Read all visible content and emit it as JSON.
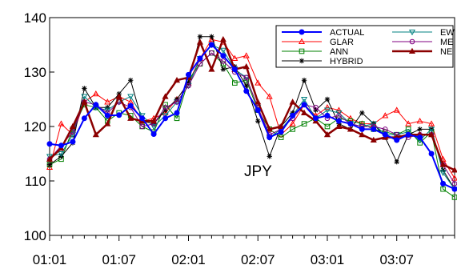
{
  "chart_data": {
    "type": "line",
    "annotation": "JPY",
    "ylim": [
      100,
      140
    ],
    "yticks": [
      100,
      110,
      120,
      130,
      140
    ],
    "xticks": [
      "01:01",
      "01:07",
      "02:01",
      "02:07",
      "03:01",
      "03:07"
    ],
    "grid": false,
    "legend_position": "top-right",
    "x": [
      "01:01",
      "01:02",
      "01:03",
      "01:04",
      "01:05",
      "01:06",
      "01:07",
      "01:08",
      "01:09",
      "01:10",
      "01:11",
      "01:12",
      "02:01",
      "02:02",
      "02:03",
      "02:04",
      "02:05",
      "02:06",
      "02:07",
      "02:08",
      "02:09",
      "02:10",
      "02:11",
      "02:12",
      "03:01",
      "03:02",
      "03:03",
      "03:04",
      "03:05",
      "03:06",
      "03:07",
      "03:08",
      "03:09",
      "03:10",
      "03:11",
      "03:12"
    ],
    "series": [
      {
        "name": "ACTUAL",
        "color": "#0000ff",
        "marker": "dot",
        "width": 2,
        "values": [
          116.8,
          116.5,
          117.2,
          121.5,
          124.0,
          122.0,
          122.1,
          123.8,
          121.5,
          118.6,
          121.5,
          122.5,
          129.5,
          132.5,
          135.0,
          133.0,
          130.5,
          126.5,
          123.0,
          118.0,
          119.0,
          122.0,
          124.0,
          121.5,
          122.0,
          121.0,
          120.5,
          119.5,
          119.5,
          118.5,
          117.5,
          118.5,
          118.0,
          115.0,
          109.5,
          108.5
        ]
      },
      {
        "name": "GLAR",
        "color": "#ff0000",
        "marker": "triangle",
        "width": 1,
        "values": [
          112.5,
          120.5,
          118.5,
          124.5,
          126.0,
          124.5,
          125.5,
          124.5,
          121.0,
          121.5,
          122.5,
          125.0,
          128.0,
          132.5,
          136.0,
          135.5,
          132.5,
          133.0,
          128.0,
          125.5,
          118.5,
          120.5,
          124.0,
          122.0,
          123.5,
          123.0,
          121.5,
          120.5,
          120.5,
          122.0,
          123.0,
          120.5,
          121.0,
          120.5,
          114.0,
          110.5
        ]
      },
      {
        "name": "ANN",
        "color": "#008000",
        "marker": "square",
        "width": 1,
        "values": [
          113.0,
          114.0,
          119.5,
          124.0,
          123.5,
          121.0,
          122.5,
          122.0,
          120.0,
          119.0,
          124.0,
          121.5,
          128.5,
          131.5,
          133.5,
          131.5,
          128.0,
          128.5,
          123.0,
          119.5,
          118.0,
          119.5,
          120.5,
          121.5,
          120.0,
          121.5,
          121.0,
          120.5,
          119.5,
          119.0,
          118.5,
          119.5,
          117.0,
          119.0,
          108.5,
          107.0
        ]
      },
      {
        "name": "HYBRID",
        "color": "#000000",
        "marker": "star",
        "width": 1,
        "values": [
          113.0,
          114.5,
          117.0,
          127.0,
          123.5,
          123.5,
          126.0,
          128.5,
          121.0,
          120.5,
          123.0,
          125.0,
          128.0,
          136.5,
          136.5,
          130.5,
          131.0,
          127.5,
          121.0,
          114.5,
          120.0,
          122.5,
          128.5,
          123.0,
          125.0,
          120.5,
          119.5,
          122.5,
          120.5,
          118.0,
          113.5,
          118.5,
          119.5,
          119.5,
          112.0,
          108.5
        ]
      },
      {
        "name": "EW",
        "color": "#008080",
        "marker": "triangle-down",
        "width": 1,
        "values": [
          114.5,
          115.0,
          118.5,
          125.5,
          123.5,
          123.0,
          124.5,
          125.5,
          122.0,
          120.0,
          122.0,
          124.5,
          127.5,
          132.5,
          135.0,
          134.0,
          130.5,
          129.0,
          123.5,
          118.0,
          119.5,
          122.0,
          125.0,
          121.5,
          123.0,
          122.5,
          120.5,
          120.0,
          120.5,
          118.5,
          118.5,
          119.0,
          117.5,
          119.5,
          111.5,
          108.5
        ]
      },
      {
        "name": "ME",
        "color": "#800080",
        "marker": "circle",
        "width": 1,
        "values": [
          114.0,
          116.5,
          119.0,
          124.5,
          124.0,
          122.5,
          124.5,
          123.5,
          120.0,
          120.5,
          123.5,
          124.5,
          127.5,
          131.5,
          133.5,
          132.0,
          130.0,
          129.0,
          123.5,
          118.5,
          119.5,
          121.5,
          124.0,
          123.5,
          121.5,
          122.0,
          120.5,
          120.0,
          120.0,
          119.5,
          118.5,
          118.0,
          118.5,
          118.5,
          113.0,
          109.5
        ]
      },
      {
        "name": "NE",
        "color": "#8b0000",
        "marker": "triangle",
        "width": 2.5,
        "values": [
          114.0,
          116.0,
          120.0,
          124.5,
          118.5,
          120.5,
          125.5,
          121.5,
          121.0,
          121.0,
          125.5,
          128.5,
          129.0,
          135.5,
          130.5,
          136.0,
          130.5,
          131.0,
          124.5,
          119.5,
          120.0,
          124.5,
          122.5,
          121.0,
          118.5,
          120.0,
          119.5,
          118.5,
          117.5,
          118.0,
          118.0,
          118.5,
          118.5,
          118.5,
          113.0,
          112.0
        ]
      }
    ]
  }
}
